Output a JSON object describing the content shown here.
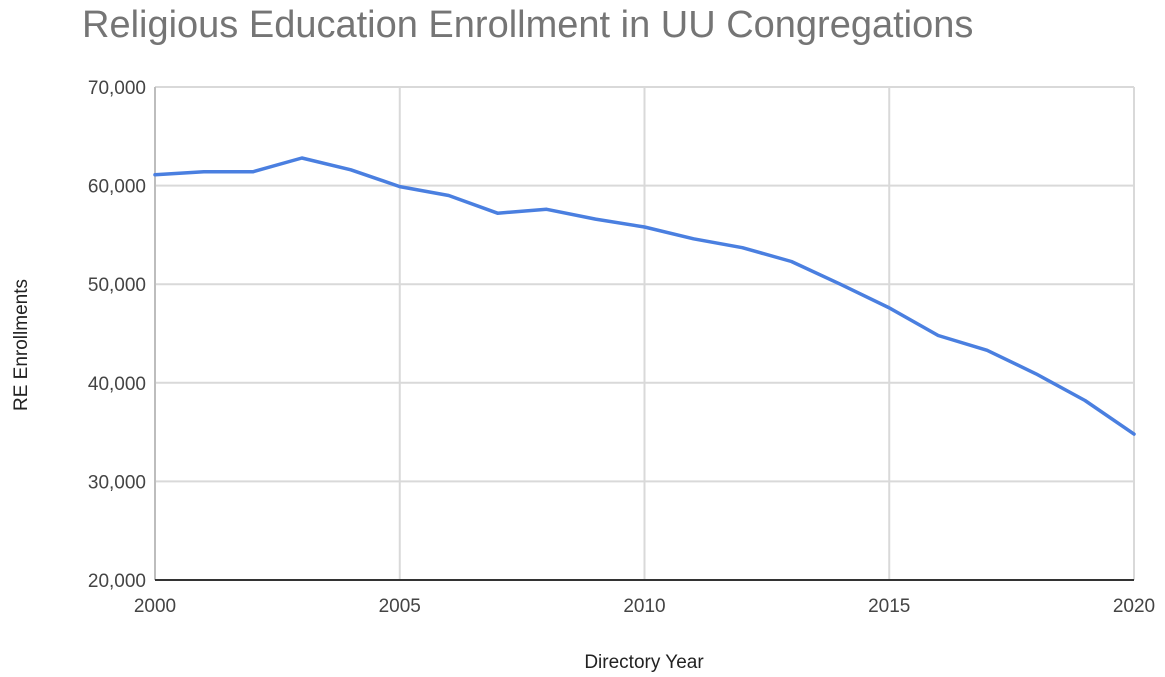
{
  "chart_data": {
    "type": "line",
    "title": "Religious Education Enrollment in UU Congregations",
    "xlabel": "Directory Year",
    "ylabel": "RE Enrollments",
    "xlim": [
      2000,
      2020
    ],
    "ylim": [
      20000,
      70000
    ],
    "x_ticks": [
      2000,
      2005,
      2010,
      2015,
      2020
    ],
    "x_tick_labels": [
      "2000",
      "2005",
      "2010",
      "2015",
      "2020"
    ],
    "y_ticks": [
      20000,
      30000,
      40000,
      50000,
      60000,
      70000
    ],
    "y_tick_labels": [
      "20,000",
      "30,000",
      "40,000",
      "50,000",
      "60,000",
      "70,000"
    ],
    "grid": true,
    "legend": "none",
    "series": [
      {
        "color": "#4a7fe0",
        "x": [
          2000,
          2001,
          2002,
          2003,
          2004,
          2005,
          2006,
          2007,
          2008,
          2009,
          2010,
          2011,
          2012,
          2013,
          2014,
          2015,
          2016,
          2017,
          2018,
          2019,
          2020
        ],
        "y": [
          61100,
          61400,
          61400,
          62800,
          61600,
          59900,
          59000,
          57200,
          57600,
          56600,
          55800,
          54600,
          53700,
          52300,
          50000,
          47600,
          44800,
          43300,
          40900,
          38200,
          34800
        ]
      }
    ]
  }
}
